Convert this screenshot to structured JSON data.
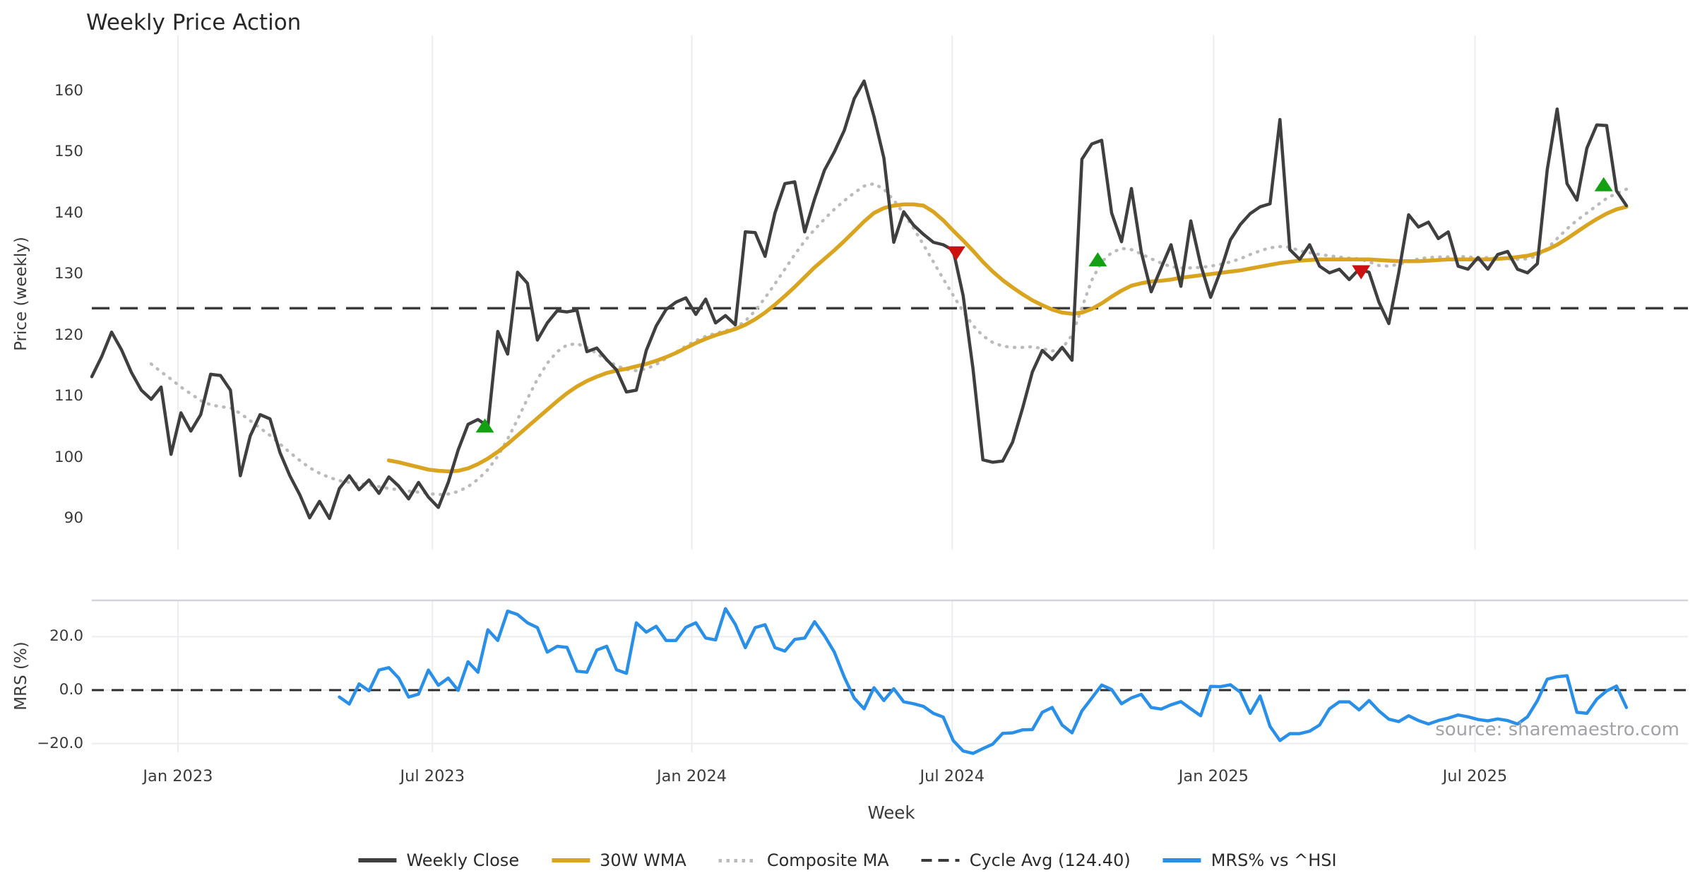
{
  "title": "Weekly Price Action",
  "watermark": "source: sharemaestro.com",
  "axes": {
    "x_label": "Week",
    "x_ticks": [
      {
        "week": 8.7,
        "label": "Jan 2023"
      },
      {
        "week": 34.4,
        "label": "Jul 2023"
      },
      {
        "week": 60.6,
        "label": "Jan 2024"
      },
      {
        "week": 86.9,
        "label": "Jul 2024"
      },
      {
        "week": 113.3,
        "label": "Jan 2025"
      },
      {
        "week": 139.7,
        "label": "Jul 2025"
      }
    ],
    "price": {
      "label": "Price (weekly)",
      "ticks": [
        160,
        150,
        140,
        130,
        120,
        110,
        100,
        90
      ]
    },
    "mrs": {
      "label": "MRS (%)",
      "ticks": [
        {
          "value": 20,
          "label": "20.0"
        },
        {
          "value": 0,
          "label": "0.0"
        },
        {
          "value": -20,
          "label": "−20.0"
        }
      ]
    }
  },
  "legend": [
    {
      "label": "Weekly Close",
      "swatch": "solid",
      "color": "#3f3f3f"
    },
    {
      "label": "30W WMA",
      "swatch": "solid",
      "color": "#d9a521"
    },
    {
      "label": "Composite MA",
      "swatch": "dotted",
      "color": "#bbbbbb"
    },
    {
      "label": "Cycle Avg (124.40)",
      "swatch": "dashed",
      "color": "#3b3b3b"
    },
    {
      "label": "MRS% vs ^HSI",
      "swatch": "solid",
      "color": "#2a8fe6"
    }
  ],
  "chart_data": {
    "type": "line",
    "title": "Weekly Price Action",
    "xlabel": "Week",
    "x_unit": "weekly index, Nov 2022 through Nov 2025 (156 weeks)",
    "cycle_avg": 124.4,
    "price_ylim": [
      85,
      168
    ],
    "mrs_ylim": [
      -25,
      33
    ],
    "grid": "vertical gridlines at half-year ticks; light horizontal gridlines on MRS panel",
    "legend_position": "bottom center",
    "signal_colors": {
      "buy": "#13a113",
      "sell": "#cc1111"
    },
    "signals": [
      {
        "week": 39.7,
        "price": 105.1,
        "type": "buy"
      },
      {
        "week": 87.3,
        "price": 133.5,
        "type": "sell"
      },
      {
        "week": 101.6,
        "price": 132.3,
        "type": "buy"
      },
      {
        "week": 128.2,
        "price": 130.4,
        "type": "sell"
      },
      {
        "week": 152.7,
        "price": 144.6,
        "type": "buy"
      }
    ],
    "series": [
      {
        "name": "Weekly Close",
        "panel": "price",
        "start_week": 0,
        "values": [
          113.2,
          116.5,
          120.5,
          117.6,
          113.9,
          111.0,
          109.5,
          111.5,
          100.5,
          107.3,
          104.3,
          107.0,
          113.6,
          113.4,
          111.0,
          97.0,
          103.5,
          107.0,
          106.3,
          100.8,
          97.0,
          93.9,
          90.1,
          92.8,
          90.0,
          94.9,
          97.0,
          94.7,
          96.3,
          94.1,
          96.8,
          95.3,
          93.2,
          95.9,
          93.5,
          91.8,
          95.9,
          101.2,
          105.4,
          106.2,
          105.1,
          120.6,
          116.9,
          130.3,
          128.5,
          119.2,
          122.0,
          124.0,
          123.8,
          124.1,
          117.3,
          117.9,
          116.0,
          114.3,
          110.7,
          111.0,
          117.5,
          121.5,
          124.2,
          125.4,
          126.1,
          123.4,
          125.9,
          122.0,
          123.2,
          121.7,
          136.9,
          136.8,
          132.9,
          140.0,
          144.8,
          145.1,
          136.9,
          142.3,
          147.0,
          150.0,
          153.5,
          158.7,
          161.6,
          155.8,
          149.0,
          135.2,
          140.2,
          138.0,
          136.5,
          135.2,
          134.8,
          133.9,
          126.5,
          114.5,
          99.6,
          99.2,
          99.4,
          102.5,
          108.0,
          114.0,
          117.5,
          116.0,
          118.0,
          115.9,
          148.8,
          151.3,
          151.9,
          140.0,
          135.3,
          144.0,
          133.6,
          127.1,
          131.0,
          134.8,
          128.0,
          138.7,
          131.5,
          126.2,
          130.5,
          135.6,
          138.1,
          139.9,
          141.0,
          141.5,
          155.3,
          134.0,
          132.4,
          134.8,
          131.3,
          130.2,
          130.8,
          129.1,
          130.8,
          130.3,
          125.4,
          121.9,
          130.2,
          139.7,
          137.7,
          138.5,
          135.8,
          136.9,
          131.3,
          130.8,
          132.7,
          130.8,
          133.2,
          133.7,
          130.8,
          130.2,
          131.7,
          147.1,
          157.0,
          144.8,
          142.1,
          150.6,
          154.4,
          154.3,
          143.6,
          141.2
        ]
      },
      {
        "name": "30W WMA",
        "panel": "price",
        "start_week": 30,
        "values": [
          99.5,
          99.2,
          98.8,
          98.4,
          98.0,
          97.8,
          97.7,
          97.8,
          98.2,
          98.9,
          99.8,
          100.9,
          102.2,
          103.6,
          105.0,
          106.4,
          107.8,
          109.2,
          110.5,
          111.6,
          112.5,
          113.2,
          113.8,
          114.2,
          114.5,
          114.9,
          115.3,
          115.8,
          116.4,
          117.1,
          117.9,
          118.7,
          119.4,
          120.0,
          120.5,
          121.0,
          121.7,
          122.6,
          123.7,
          125.0,
          126.4,
          127.9,
          129.5,
          131.1,
          132.5,
          133.9,
          135.4,
          137.0,
          138.6,
          140.0,
          140.8,
          141.2,
          141.4,
          141.4,
          141.2,
          140.2,
          138.8,
          137.1,
          135.5,
          133.8,
          132.0,
          130.4,
          129.0,
          127.8,
          126.7,
          125.7,
          124.9,
          124.2,
          123.7,
          123.5,
          123.7,
          124.3,
          125.2,
          126.3,
          127.3,
          128.1,
          128.5,
          128.8,
          128.9,
          129.1,
          129.4,
          129.6,
          129.8,
          130.0,
          130.2,
          130.4,
          130.6,
          130.9,
          131.2,
          131.5,
          131.8,
          132.0,
          132.2,
          132.3,
          132.4,
          132.4,
          132.4,
          132.4,
          132.4,
          132.4,
          132.3,
          132.2,
          132.1,
          132.1,
          132.1,
          132.2,
          132.3,
          132.4,
          132.4,
          132.4,
          132.4,
          132.4,
          132.5,
          132.6,
          132.8,
          133.0,
          133.4,
          134.0,
          134.8,
          135.8,
          136.9,
          138.0,
          139.0,
          139.9,
          140.6,
          141.0
        ]
      },
      {
        "name": "Composite MA",
        "panel": "price",
        "start_week": 6,
        "values": [
          115.3,
          114.0,
          112.8,
          111.5,
          110.4,
          109.3,
          108.6,
          108.3,
          108.1,
          107.2,
          106.0,
          104.8,
          103.6,
          102.2,
          100.8,
          99.5,
          98.3,
          97.4,
          96.7,
          96.2,
          95.9,
          95.7,
          95.5,
          95.2,
          94.9,
          94.7,
          94.5,
          94.3,
          94.1,
          93.9,
          94.0,
          94.4,
          95.2,
          96.4,
          98.0,
          100.2,
          103.0,
          106.2,
          109.6,
          112.8,
          115.4,
          117.3,
          118.4,
          118.6,
          118.0,
          117.0,
          115.9,
          115.0,
          114.4,
          114.2,
          114.5,
          115.2,
          116.2,
          117.2,
          118.2,
          119.1,
          119.8,
          120.3,
          120.7,
          121.2,
          122.3,
          124.0,
          126.1,
          128.4,
          130.8,
          133.2,
          135.4,
          137.3,
          139.0,
          140.6,
          142.0,
          143.3,
          144.4,
          144.8,
          143.9,
          142.1,
          139.9,
          137.5,
          134.8,
          132.0,
          129.2,
          126.5,
          123.9,
          121.6,
          119.9,
          118.8,
          118.2,
          118.0,
          118.0,
          118.1,
          117.8,
          117.4,
          117.8,
          120.0,
          124.5,
          129.0,
          132.0,
          133.5,
          134.2,
          134.0,
          133.3,
          132.5,
          131.8,
          131.2,
          131.0,
          131.0,
          131.1,
          131.3,
          131.6,
          132.0,
          132.5,
          133.2,
          133.8,
          134.3,
          134.5,
          134.4,
          133.8,
          133.5,
          133.2,
          133.0,
          132.8,
          132.6,
          132.5,
          132.0,
          131.4,
          131.3,
          131.6,
          132.0,
          132.5,
          132.7,
          132.8,
          132.8,
          132.9,
          132.8,
          132.7,
          132.7,
          132.6,
          132.5,
          132.4,
          132.5,
          133.0,
          134.2,
          135.8,
          137.4,
          138.8,
          140.0,
          141.2,
          142.4,
          143.2,
          143.9
        ]
      },
      {
        "name": "MRS% vs ^HSI",
        "panel": "mrs",
        "start_week": 25,
        "values": [
          -2.6,
          -5.2,
          2.3,
          -0.3,
          7.5,
          8.4,
          4.5,
          -2.6,
          -1.5,
          7.5,
          1.8,
          4.5,
          -0.1,
          10.6,
          6.7,
          22.6,
          18.6,
          29.6,
          28.3,
          25.2,
          23.4,
          14.2,
          16.4,
          16.0,
          7.1,
          6.7,
          15.0,
          16.4,
          7.6,
          6.3,
          25.2,
          21.7,
          23.9,
          18.6,
          18.6,
          23.5,
          25.2,
          19.5,
          18.8,
          30.5,
          24.6,
          15.9,
          23.4,
          24.5,
          15.9,
          14.6,
          19.0,
          19.5,
          25.6,
          20.4,
          14.2,
          4.9,
          -3.0,
          -7.0,
          0.9,
          -3.9,
          0.5,
          -4.4,
          -5.1,
          -6.1,
          -8.7,
          -10.1,
          -18.9,
          -22.8,
          -23.7,
          -21.9,
          -20.2,
          -16.2,
          -16.0,
          -14.9,
          -14.8,
          -8.3,
          -6.5,
          -13.1,
          -16.0,
          -7.8,
          -3.0,
          1.9,
          0.2,
          -5.1,
          -2.9,
          -1.6,
          -6.5,
          -7.1,
          -5.5,
          -4.3,
          -7.0,
          -9.6,
          1.4,
          1.3,
          2.0,
          -0.8,
          -8.7,
          -2.2,
          -13.6,
          -18.9,
          -16.3,
          -16.3,
          -15.4,
          -13.1,
          -7.0,
          -4.4,
          -4.4,
          -7.4,
          -3.9,
          -7.8,
          -10.9,
          -11.8,
          -9.6,
          -11.4,
          -12.7,
          -11.4,
          -10.5,
          -9.3,
          -10.0,
          -11.0,
          -11.5,
          -10.8,
          -11.4,
          -12.7,
          -10.0,
          -4.0,
          4.1,
          5.0,
          5.4,
          -8.3,
          -8.7,
          -3.4,
          -0.3,
          1.5,
          -6.5
        ]
      }
    ]
  }
}
